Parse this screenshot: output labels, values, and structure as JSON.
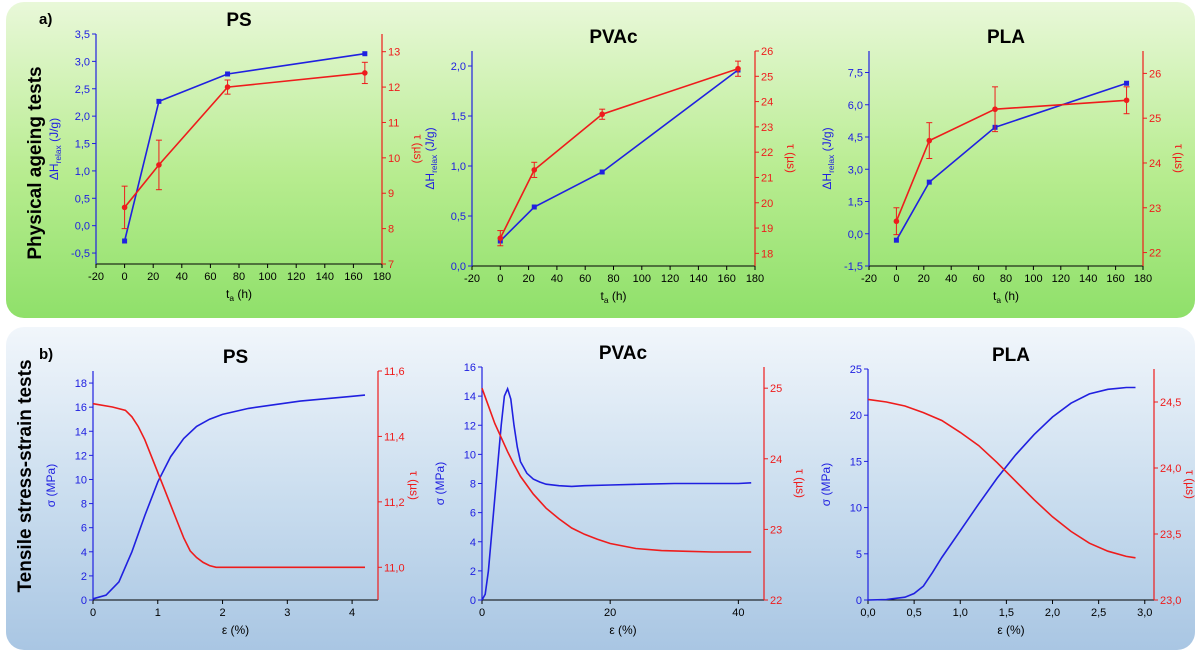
{
  "panels": {
    "a": {
      "letter": "a)",
      "side_title": "Physical ageing tests"
    },
    "b": {
      "letter": "b)",
      "side_title": "Tensile stress-strain tests"
    }
  },
  "colors": {
    "left_series": "#2020e0",
    "right_series": "#ee1c1c",
    "axis": "#000000"
  },
  "chart_data": [
    {
      "id": "a-ps",
      "type": "line",
      "title": "PS",
      "xlabel": "t_a (h)",
      "ylabel": "ΔH_relax (J/g)",
      "y2label": "τ (µs)",
      "xlim": [
        -20,
        180
      ],
      "xticks": [
        -20,
        0,
        20,
        40,
        60,
        80,
        100,
        120,
        140,
        160,
        180
      ],
      "ylim": [
        -0.7,
        3.5
      ],
      "yticks": [
        -0.5,
        0.0,
        0.5,
        1.0,
        1.5,
        2.0,
        2.5,
        3.0,
        3.5
      ],
      "ydec": 1,
      "y2lim": [
        7,
        13.5
      ],
      "y2ticks": [
        7,
        8,
        9,
        10,
        11,
        12,
        13
      ],
      "y2dec": 0,
      "decimal_comma": true,
      "markers": true,
      "series": [
        {
          "axis": "left",
          "x": [
            0,
            24,
            72,
            168
          ],
          "y": [
            -0.28,
            2.27,
            2.77,
            3.14
          ]
        },
        {
          "axis": "right",
          "x": [
            0,
            24,
            72,
            168
          ],
          "y": [
            8.6,
            9.8,
            12.0,
            12.4
          ],
          "err": [
            0.6,
            0.7,
            0.2,
            0.3
          ]
        }
      ]
    },
    {
      "id": "a-pvac",
      "type": "line",
      "title": "PVAc",
      "xlabel": "t_a (h)",
      "ylabel": "ΔH_relax (J/g)",
      "y2label": "τ (µs)",
      "xlim": [
        -20,
        180
      ],
      "xticks": [
        -20,
        0,
        20,
        40,
        60,
        80,
        100,
        120,
        140,
        160,
        180
      ],
      "ylim": [
        0,
        2.15
      ],
      "yticks": [
        0.0,
        0.5,
        1.0,
        1.5,
        2.0
      ],
      "ydec": 1,
      "y2lim": [
        17.5,
        26
      ],
      "y2ticks": [
        18,
        19,
        20,
        21,
        22,
        23,
        24,
        25,
        26
      ],
      "y2dec": 0,
      "decimal_comma": true,
      "markers": true,
      "series": [
        {
          "axis": "left",
          "x": [
            0,
            24,
            72,
            168
          ],
          "y": [
            0.25,
            0.59,
            0.94,
            1.96
          ]
        },
        {
          "axis": "right",
          "x": [
            0,
            24,
            72,
            168
          ],
          "y": [
            18.6,
            21.3,
            23.5,
            25.3
          ],
          "err": [
            0.3,
            0.3,
            0.2,
            0.3
          ]
        }
      ]
    },
    {
      "id": "a-pla",
      "type": "line",
      "title": "PLA",
      "xlabel": "t_a (h)",
      "ylabel": "ΔH_relax (J/g)",
      "y2label": "τ (µs)",
      "xlim": [
        -20,
        180
      ],
      "xticks": [
        -20,
        0,
        20,
        40,
        60,
        80,
        100,
        120,
        140,
        160,
        180
      ],
      "ylim": [
        -1.5,
        8.5
      ],
      "yticks": [
        -1.5,
        0.0,
        1.5,
        3.0,
        4.5,
        6.0,
        7.5
      ],
      "ydec": 1,
      "y2lim": [
        21.7,
        26.5
      ],
      "y2ticks": [
        22,
        23,
        24,
        25,
        26
      ],
      "y2dec": 0,
      "decimal_comma": true,
      "markers": true,
      "series": [
        {
          "axis": "left",
          "x": [
            0,
            24,
            72,
            168
          ],
          "y": [
            -0.3,
            2.4,
            4.95,
            7.0
          ]
        },
        {
          "axis": "right",
          "x": [
            0,
            24,
            72,
            168
          ],
          "y": [
            22.7,
            24.5,
            25.2,
            25.4
          ],
          "err": [
            0.3,
            0.4,
            0.5,
            0.3
          ]
        }
      ]
    },
    {
      "id": "b-ps",
      "type": "line",
      "title": "PS",
      "xlabel": "ε (%)",
      "ylabel": "σ (MPa)",
      "y2label": "τ (µs)",
      "xlim": [
        0,
        4.4
      ],
      "xticks": [
        0,
        1,
        2,
        3,
        4
      ],
      "xdec": 0,
      "ylim": [
        0,
        19
      ],
      "yticks": [
        0,
        2,
        4,
        6,
        8,
        10,
        12,
        14,
        16,
        18
      ],
      "ydec": 0,
      "y2lim": [
        10.9,
        11.6
      ],
      "y2ticks": [
        11.0,
        11.2,
        11.4,
        11.6
      ],
      "y2dec": 1,
      "decimal_comma": true,
      "markers": false,
      "series": [
        {
          "axis": "left",
          "x": [
            0,
            0.2,
            0.4,
            0.6,
            0.8,
            1.0,
            1.2,
            1.4,
            1.6,
            1.8,
            2.0,
            2.4,
            2.8,
            3.2,
            3.6,
            4.0,
            4.2
          ],
          "y": [
            0.1,
            0.4,
            1.5,
            4.0,
            7.0,
            9.8,
            11.9,
            13.4,
            14.4,
            15.0,
            15.4,
            15.9,
            16.2,
            16.5,
            16.7,
            16.9,
            17.0
          ]
        },
        {
          "axis": "right",
          "x": [
            0,
            0.3,
            0.5,
            0.6,
            0.7,
            0.8,
            0.9,
            1.0,
            1.1,
            1.2,
            1.3,
            1.4,
            1.5,
            1.6,
            1.7,
            1.8,
            1.9,
            2.0,
            2.5,
            3.0,
            3.5,
            4.0,
            4.2
          ],
          "y": [
            11.5,
            11.49,
            11.48,
            11.46,
            11.43,
            11.39,
            11.34,
            11.29,
            11.24,
            11.19,
            11.14,
            11.09,
            11.05,
            11.03,
            11.015,
            11.005,
            11.0,
            11.0,
            11.0,
            11.0,
            11.0,
            11.0,
            11.0
          ]
        }
      ]
    },
    {
      "id": "b-pvac",
      "type": "line",
      "title": "PVAc",
      "xlabel": "ε (%)",
      "ylabel": "σ (MPa)",
      "y2label": "τ (µs)",
      "xlim": [
        0,
        44
      ],
      "xticks": [
        0,
        20,
        40
      ],
      "xdec": 0,
      "ylim": [
        0,
        16
      ],
      "yticks": [
        0,
        2,
        4,
        6,
        8,
        10,
        12,
        14,
        16
      ],
      "ydec": 0,
      "y2lim": [
        22,
        25.3
      ],
      "y2ticks": [
        22,
        23,
        24,
        25
      ],
      "y2dec": 0,
      "decimal_comma": true,
      "markers": false,
      "series": [
        {
          "axis": "left",
          "x": [
            0,
            0.5,
            1.0,
            1.5,
            2.0,
            2.5,
            3.0,
            3.5,
            4.0,
            4.5,
            5.0,
            5.5,
            6.0,
            7.0,
            8.0,
            9.0,
            10.0,
            12.0,
            14.0,
            16.0,
            20.0,
            25.0,
            30.0,
            35.0,
            40.0,
            42.0
          ],
          "y": [
            0.0,
            0.4,
            2.0,
            4.5,
            7.0,
            9.5,
            12.0,
            14.0,
            14.5,
            13.8,
            12.0,
            10.5,
            9.5,
            8.7,
            8.3,
            8.1,
            7.95,
            7.85,
            7.8,
            7.85,
            7.9,
            7.95,
            8.0,
            8.0,
            8.0,
            8.05
          ]
        },
        {
          "axis": "right",
          "x": [
            0,
            1,
            2,
            3,
            4,
            5,
            6,
            8,
            10,
            12,
            14,
            16,
            18,
            20,
            24,
            28,
            32,
            36,
            40,
            42
          ],
          "y": [
            25.0,
            24.75,
            24.5,
            24.3,
            24.1,
            23.92,
            23.75,
            23.5,
            23.3,
            23.15,
            23.02,
            22.93,
            22.86,
            22.8,
            22.73,
            22.7,
            22.69,
            22.68,
            22.68,
            22.68
          ]
        }
      ]
    },
    {
      "id": "b-pla",
      "type": "line",
      "title": "PLA",
      "xlabel": "ε (%)",
      "ylabel": "σ (MPa)",
      "y2label": "τ (µs)",
      "xlim": [
        0,
        3.1
      ],
      "xticks": [
        0.0,
        0.5,
        1.0,
        1.5,
        2.0,
        2.5,
        3.0
      ],
      "xdec": 1,
      "ylim": [
        0,
        25
      ],
      "yticks": [
        0,
        5,
        10,
        15,
        20,
        25
      ],
      "ydec": 0,
      "y2lim": [
        23.0,
        24.75
      ],
      "y2ticks": [
        23.0,
        23.5,
        24.0,
        24.5
      ],
      "y2dec": 1,
      "decimal_comma": true,
      "markers": false,
      "series": [
        {
          "axis": "left",
          "x": [
            0,
            0.2,
            0.4,
            0.5,
            0.6,
            0.7,
            0.8,
            1.0,
            1.2,
            1.4,
            1.6,
            1.8,
            2.0,
            2.2,
            2.4,
            2.6,
            2.7,
            2.8,
            2.9
          ],
          "y": [
            0.0,
            0.05,
            0.3,
            0.7,
            1.5,
            3.0,
            4.6,
            7.5,
            10.4,
            13.2,
            15.7,
            17.9,
            19.8,
            21.3,
            22.3,
            22.8,
            22.9,
            23.0,
            23.0
          ]
        },
        {
          "axis": "right",
          "x": [
            0,
            0.2,
            0.4,
            0.6,
            0.8,
            1.0,
            1.2,
            1.4,
            1.6,
            1.8,
            2.0,
            2.2,
            2.4,
            2.6,
            2.8,
            2.9
          ],
          "y": [
            24.52,
            24.5,
            24.47,
            24.42,
            24.36,
            24.27,
            24.17,
            24.04,
            23.9,
            23.76,
            23.63,
            23.52,
            23.43,
            23.37,
            23.33,
            23.32
          ]
        }
      ]
    }
  ]
}
